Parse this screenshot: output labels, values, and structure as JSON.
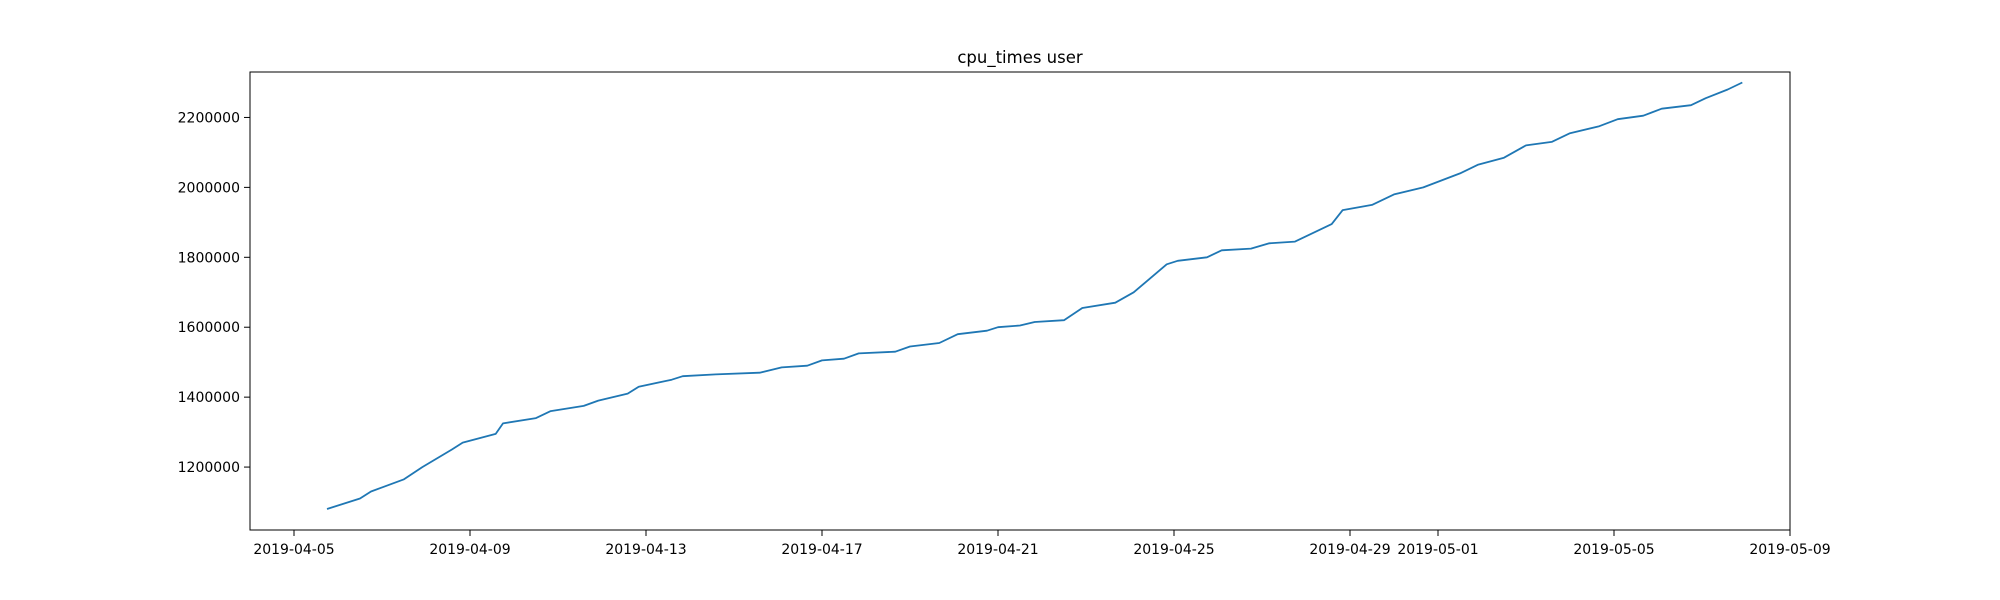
{
  "chart_data": {
    "type": "line",
    "title": "cpu_times user",
    "xlabel": "",
    "ylabel": "",
    "x_axis": {
      "kind": "date",
      "range": [
        "2019-04-04",
        "2019-05-09"
      ],
      "ticks": [
        "2019-04-05",
        "2019-04-09",
        "2019-04-13",
        "2019-04-17",
        "2019-04-21",
        "2019-04-25",
        "2019-04-29",
        "2019-05-01",
        "2019-05-05",
        "2019-05-09"
      ]
    },
    "y_axis": {
      "range": [
        1020000,
        2330000
      ],
      "ticks": [
        1200000,
        1400000,
        1600000,
        1800000,
        2000000,
        2200000
      ],
      "tick_labels": [
        "1200000",
        "1400000",
        "1600000",
        "1800000",
        "2000000",
        "2200000"
      ]
    },
    "grid": false,
    "legend": "none",
    "line_color": "#1f77b4",
    "series": [
      {
        "x": [
          "2019-04-05 18:00",
          "2019-04-06 12:00",
          "2019-04-06 18:00",
          "2019-04-07 12:00",
          "2019-04-07 22:00",
          "2019-04-08 14:00",
          "2019-04-08 20:00",
          "2019-04-09 14:00",
          "2019-04-09 18:00",
          "2019-04-10 12:00",
          "2019-04-10 20:00",
          "2019-04-11 14:00",
          "2019-04-11 22:00",
          "2019-04-12 14:00",
          "2019-04-12 20:00",
          "2019-04-13 14:00",
          "2019-04-13 20:00",
          "2019-04-14 14:00",
          "2019-04-15 14:00",
          "2019-04-16 02:00",
          "2019-04-16 16:00",
          "2019-04-17 00:00",
          "2019-04-17 12:00",
          "2019-04-17 20:00",
          "2019-04-18 16:00",
          "2019-04-19 00:00",
          "2019-04-19 16:00",
          "2019-04-20 02:00",
          "2019-04-20 18:00",
          "2019-04-21 00:00",
          "2019-04-21 12:00",
          "2019-04-21 20:00",
          "2019-04-22 12:00",
          "2019-04-22 22:00",
          "2019-04-23 16:00",
          "2019-04-24 02:00",
          "2019-04-24 20:00",
          "2019-04-25 02:00",
          "2019-04-25 18:00",
          "2019-04-26 02:00",
          "2019-04-26 18:00",
          "2019-04-27 04:00",
          "2019-04-27 18:00",
          "2019-04-28 14:00",
          "2019-04-28 20:00",
          "2019-04-29 12:00",
          "2019-04-30 00:00",
          "2019-04-30 16:00",
          "2019-05-01 12:00",
          "2019-05-01 22:00",
          "2019-05-02 12:00",
          "2019-05-03 00:00",
          "2019-05-03 14:00",
          "2019-05-04 00:00",
          "2019-05-04 16:00",
          "2019-05-05 02:00",
          "2019-05-05 16:00",
          "2019-05-06 02:00",
          "2019-05-06 18:00",
          "2019-05-07 02:00",
          "2019-05-07 14:00",
          "2019-05-07 22:00"
        ],
        "y": [
          1080000,
          1110000,
          1130000,
          1165000,
          1200000,
          1250000,
          1270000,
          1295000,
          1325000,
          1340000,
          1360000,
          1375000,
          1390000,
          1410000,
          1430000,
          1450000,
          1460000,
          1465000,
          1470000,
          1485000,
          1490000,
          1505000,
          1510000,
          1525000,
          1530000,
          1545000,
          1555000,
          1580000,
          1590000,
          1600000,
          1605000,
          1615000,
          1620000,
          1655000,
          1670000,
          1700000,
          1780000,
          1790000,
          1800000,
          1820000,
          1825000,
          1840000,
          1845000,
          1895000,
          1935000,
          1950000,
          1980000,
          2000000,
          2040000,
          2065000,
          2085000,
          2120000,
          2130000,
          2155000,
          2175000,
          2195000,
          2205000,
          2225000,
          2235000,
          2255000,
          2280000,
          2300000
        ]
      }
    ]
  }
}
